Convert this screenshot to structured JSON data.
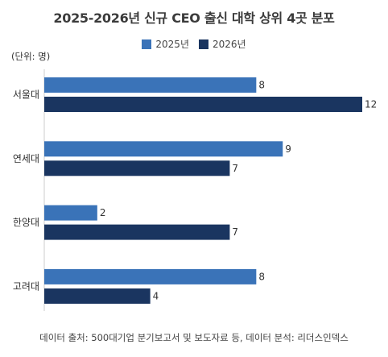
{
  "chart_data": {
    "type": "bar",
    "orientation": "horizontal",
    "title": "2025-2026년 신규 CEO 출신 대학 상위 4곳 분포",
    "unit_label": "(단위: 명)",
    "categories": [
      "서울대",
      "연세대",
      "한양대",
      "고려대"
    ],
    "series": [
      {
        "name": "2025년",
        "values": [
          8,
          9,
          2,
          8
        ],
        "color": "#3a73b8"
      },
      {
        "name": "2026년",
        "values": [
          12,
          7,
          7,
          4
        ],
        "color": "#1a3560"
      }
    ],
    "xlim": [
      0,
      12
    ],
    "grid": false,
    "legend_position": "top-center",
    "source": "데이터 출처: 500대기업 분기보고서 및 보도자료 등, 데이터 분석: 리더스인덱스"
  }
}
